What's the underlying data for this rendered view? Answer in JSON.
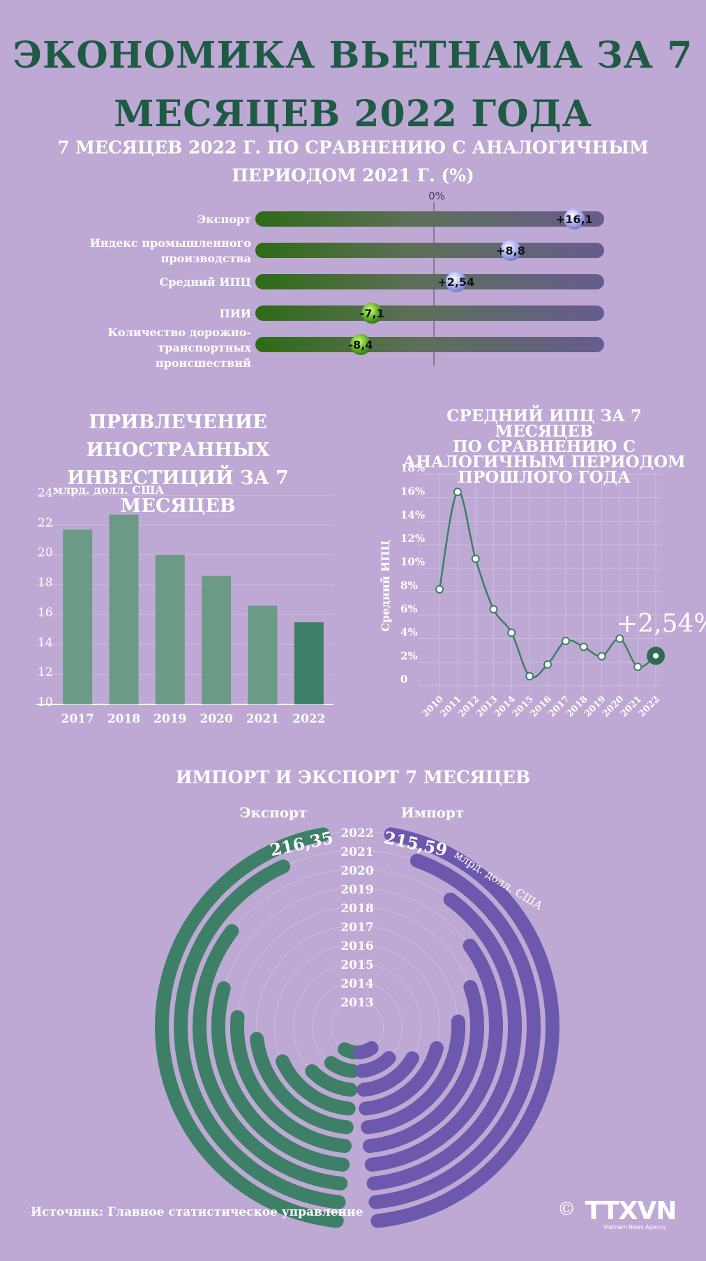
{
  "title_line1": "ЭКОНОМИКА ВЬЕТНАМА ЗА 7",
  "title_line2": "МЕСЯЦЕВ 2022 ГОДА",
  "comparison": {
    "title_line1": "7 МЕСЯЦЕВ 2022 Г. ПО СРАВНЕНИЮ С АНАЛОГИЧНЫМ",
    "title_line2": "ПЕРИОДОМ 2021 Г.  (%)",
    "zero_label": "0%",
    "axis_min": -20,
    "axis_max": 20,
    "items": [
      {
        "label_lines": [
          "Экспорт"
        ],
        "value": 16.1,
        "value_label": "+16,1"
      },
      {
        "label_lines": [
          "Индекс промышленного",
          "производства"
        ],
        "value": 8.8,
        "value_label": "+8,8"
      },
      {
        "label_lines": [
          "Средний ИПЦ"
        ],
        "value": 2.54,
        "value_label": "+2,54"
      },
      {
        "label_lines": [
          "ПИИ"
        ],
        "value": -7.1,
        "value_label": "-7,1"
      },
      {
        "label_lines": [
          "Количество дорожно-",
          "транспортных",
          "происшествий"
        ],
        "value": -8.4,
        "value_label": "-8,4"
      }
    ]
  },
  "fdi": {
    "title_line1": "ПРИВЛЕЧЕНИЕ ИНОСТРАННЫХ",
    "title_line2": "ИНВЕСТИЦИЙ ЗА 7 МЕСЯЦЕВ",
    "unit": "млрд. долл. США",
    "chart_data": {
      "type": "bar",
      "categories": [
        "2017",
        "2018",
        "2019",
        "2020",
        "2021",
        "2022"
      ],
      "values": [
        21.7,
        22.7,
        20.0,
        18.6,
        16.6,
        15.5
      ],
      "ylim": [
        10,
        24
      ],
      "yticks": [
        "24",
        "22",
        "20",
        "18",
        "16",
        "14",
        "12",
        "10"
      ],
      "bar_color": "#6b9a86",
      "highlight_color": "#3e8067"
    }
  },
  "cpi": {
    "title_lines": [
      "СРЕДНИЙ ИПЦ ЗА 7 МЕСЯЦЕВ",
      "ПО СРАВНЕНИЮ С",
      "АНАЛОГИЧНЫМ ПЕРИОДОМ",
      "ПРОШЛОГО ГОДА"
    ],
    "ylabel": "Средний ИПЦ",
    "highlight_label": "+2,54%",
    "chart_data": {
      "type": "line",
      "x": [
        "2010",
        "2011",
        "2012",
        "2013",
        "2014",
        "2015",
        "2016",
        "2017",
        "2018",
        "2019",
        "2020",
        "2021",
        "2022"
      ],
      "values": [
        8.2,
        16.5,
        10.8,
        6.5,
        4.5,
        0.8,
        1.8,
        3.8,
        3.3,
        2.5,
        4.0,
        1.6,
        2.54
      ],
      "ylim": [
        0,
        18
      ],
      "yticks": [
        "18%",
        "16%",
        "14%",
        "12%",
        "10%",
        "8%",
        "6%",
        "4%",
        "2%",
        "0"
      ],
      "line_color": "#3e7d64"
    }
  },
  "trade": {
    "title": "ИМПОРТ И ЭКСПОРТ 7 МЕСЯЦЕВ",
    "export_label": "Экспорт",
    "import_label": "Импорт",
    "export_value_label": "216,35",
    "import_value_label": "215,59",
    "unit": "млрд. долл. США",
    "export_color": "#3e8067",
    "import_color": "#6c59ad",
    "chart_data": {
      "type": "radial-bar",
      "years": [
        "2022",
        "2021",
        "2020",
        "2019",
        "2018",
        "2017",
        "2016",
        "2015",
        "2014",
        "2013"
      ],
      "export_fraction": [
        1.0,
        0.91,
        0.74,
        0.61,
        0.54,
        0.47,
        0.36,
        0.24,
        0.18,
        0.14
      ],
      "import_fraction": [
        1.0,
        0.94,
        0.84,
        0.73,
        0.63,
        0.53,
        0.42,
        0.33,
        0.24,
        0.17
      ]
    }
  },
  "source": "Источник: Главное статистическое управление",
  "logo_text": "TTXVN",
  "logo_sub": "Vietnam News Agency",
  "copyright": "©"
}
